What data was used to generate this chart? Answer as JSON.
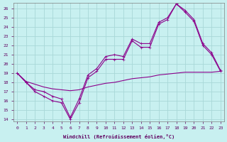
{
  "xlabel": "Windchill (Refroidissement éolien,°C)",
  "bg_color": "#c8f0f0",
  "grid_color": "#a8d8d8",
  "line_color": "#8b008b",
  "xlim": [
    -0.4,
    23.4
  ],
  "ylim": [
    13.8,
    26.6
  ],
  "xticks": [
    0,
    1,
    2,
    3,
    4,
    5,
    6,
    7,
    8,
    9,
    10,
    11,
    12,
    13,
    14,
    15,
    16,
    17,
    18,
    19,
    20,
    21,
    22,
    23
  ],
  "yticks": [
    14,
    15,
    16,
    17,
    18,
    19,
    20,
    21,
    22,
    23,
    24,
    25,
    26
  ],
  "line1_x": [
    0,
    1,
    2,
    3,
    4,
    5,
    6,
    7,
    8,
    9,
    10,
    11,
    12,
    13,
    14,
    15,
    16,
    17,
    18,
    19,
    20,
    21,
    22,
    23
  ],
  "line1_y": [
    19,
    18,
    17,
    16.5,
    16,
    15.8,
    14,
    15.8,
    18.5,
    19.2,
    20.5,
    20.5,
    20.5,
    22.5,
    21.8,
    21.8,
    24.3,
    24.8,
    26.5,
    25.6,
    24.6,
    22,
    21,
    19.2
  ],
  "line2_x": [
    0,
    1,
    2,
    3,
    4,
    5,
    6,
    7,
    8,
    9,
    10,
    11,
    12,
    13,
    14,
    15,
    16,
    17,
    18,
    19,
    20,
    21,
    22,
    23
  ],
  "line2_y": [
    19,
    18,
    17.2,
    17,
    16.5,
    16.2,
    14.2,
    16.2,
    18.8,
    19.5,
    20.8,
    21,
    20.8,
    22.7,
    22.2,
    22.2,
    24.5,
    25.0,
    26.5,
    25.8,
    24.8,
    22.2,
    21.2,
    19.3
  ],
  "line3_x": [
    0,
    1,
    2,
    3,
    4,
    5,
    6,
    7,
    8,
    9,
    10,
    11,
    12,
    13,
    14,
    15,
    16,
    17,
    18,
    19,
    20,
    21,
    22,
    23
  ],
  "line3_y": [
    19,
    18.1,
    17.8,
    17.5,
    17.3,
    17.2,
    17.1,
    17.2,
    17.5,
    17.7,
    17.9,
    18.0,
    18.2,
    18.4,
    18.5,
    18.6,
    18.8,
    18.9,
    19.0,
    19.1,
    19.1,
    19.1,
    19.1,
    19.2
  ]
}
